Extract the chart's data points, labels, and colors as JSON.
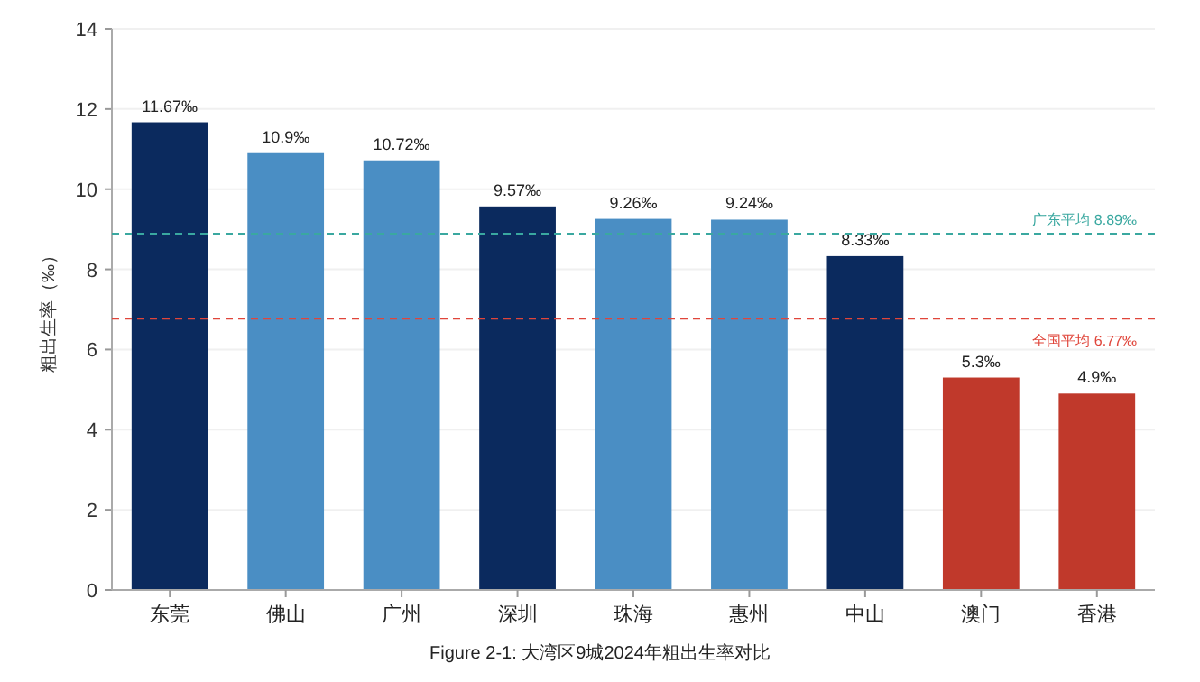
{
  "chart_data": {
    "type": "bar",
    "ylabel": "粗出生率（‰）",
    "categories": [
      "东莞",
      "佛山",
      "广州",
      "深圳",
      "珠海",
      "惠州",
      "中山",
      "澳门",
      "香港"
    ],
    "values": [
      11.67,
      10.9,
      10.72,
      9.57,
      9.26,
      9.24,
      8.33,
      5.3,
      4.9
    ],
    "colors": [
      "#0b2a5e",
      "#4a8ec4",
      "#4a8ec4",
      "#0b2a5e",
      "#4a8ec4",
      "#4a8ec4",
      "#0b2a5e",
      "#c0392b",
      "#c0392b"
    ],
    "value_labels": [
      "11.67‰",
      "10.9‰",
      "10.72‰",
      "9.57‰",
      "9.26‰",
      "9.24‰",
      "8.33‰",
      "5.3‰",
      "4.9‰"
    ],
    "ylim": [
      0,
      14
    ],
    "yticks": [
      0,
      2,
      4,
      6,
      8,
      10,
      12,
      14
    ],
    "grid": "y",
    "ref_lines": [
      {
        "axis": "y",
        "value": 8.89,
        "label": "广东平均 8.89‰",
        "color": "#3aa8a0",
        "line_style": "dashed"
      },
      {
        "axis": "y",
        "value": 6.77,
        "label": "全国平均 6.77‰",
        "color": "#e0453a",
        "line_style": "dashed"
      }
    ],
    "annotations": [
      "Figure 2-1: 大湾区9城2024年粗出生率对比"
    ]
  }
}
